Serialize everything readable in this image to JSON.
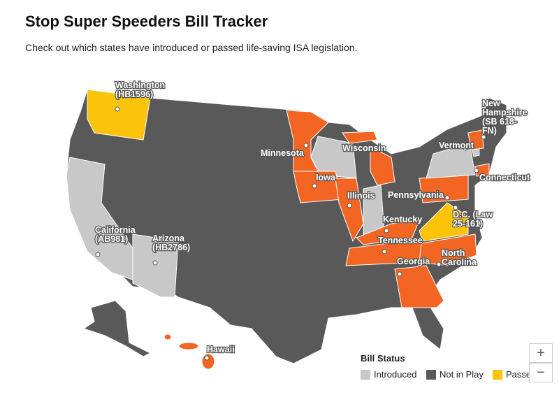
{
  "header": {
    "title": "Stop Super Speeders Bill Tracker",
    "subtitle": "Check out which states have introduced or passed life-saving ISA legislation."
  },
  "map": {
    "labels": [
      {
        "lines": [
          "Washington",
          "(HB1596)"
        ]
      },
      {
        "lines": [
          "Minnesota"
        ]
      },
      {
        "lines": [
          "Wisconsin"
        ]
      },
      {
        "lines": [
          "Iowa"
        ]
      },
      {
        "lines": [
          "Illinois"
        ]
      },
      {
        "lines": [
          "Pennsylvania"
        ]
      },
      {
        "lines": [
          "Kentucky"
        ]
      },
      {
        "lines": [
          "Tennessee"
        ]
      },
      {
        "lines": [
          "Georgia"
        ]
      },
      {
        "lines": [
          "North",
          "Carolina"
        ]
      },
      {
        "lines": [
          "D.C. (Law",
          "25-161)"
        ]
      },
      {
        "lines": [
          "Vermont"
        ]
      },
      {
        "lines": [
          "New",
          "Hampshire",
          "(SB 618-",
          "FN)"
        ]
      },
      {
        "lines": [
          "Connecticut"
        ]
      },
      {
        "lines": [
          "California",
          "(AB981)"
        ]
      },
      {
        "lines": [
          "Arizona",
          "(HB2786)"
        ]
      },
      {
        "lines": [
          "Hawaii"
        ]
      }
    ]
  },
  "legend": {
    "title": "Bill Status",
    "items": [
      {
        "label": "Introduced",
        "color": "#c8c8c8"
      },
      {
        "label": "Not in Play",
        "color": "#595959"
      },
      {
        "label": "Passed",
        "color": "#fcc30b"
      }
    ]
  },
  "controls": {
    "zoom_in": "+",
    "zoom_out": "−"
  }
}
